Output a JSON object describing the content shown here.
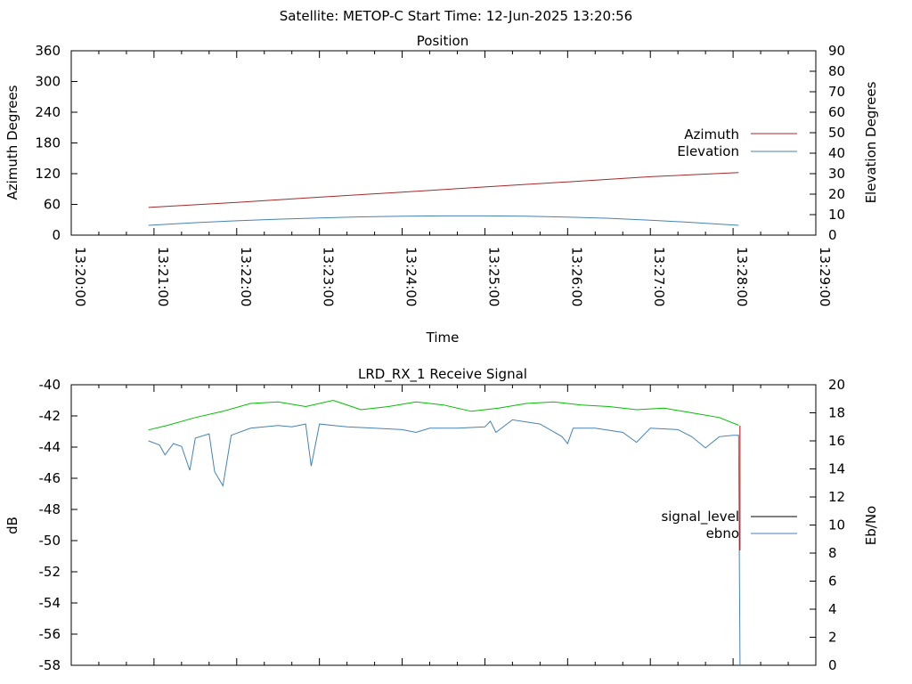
{
  "header": {
    "title": "Satellite: METOP-C    Start Time: 12-Jun-2025 13:20:56"
  },
  "chart_data": [
    {
      "type": "line",
      "title": "Position",
      "xlabel": "Time",
      "ylabel": "Azimuth Degrees",
      "y2label": "Elevation Degrees",
      "x_ticks": [
        "13:20:00",
        "13:21:00",
        "13:22:00",
        "13:23:00",
        "13:24:00",
        "13:25:00",
        "13:26:00",
        "13:27:00",
        "13:28:00",
        "13:29:00"
      ],
      "ylim": [
        0,
        360
      ],
      "y_ticks": [
        "0",
        "60",
        "120",
        "180",
        "240",
        "300",
        "360"
      ],
      "y2lim": [
        0,
        90
      ],
      "y2_ticks": [
        "0",
        "10",
        "20",
        "30",
        "40",
        "50",
        "60",
        "70",
        "80",
        "90"
      ],
      "legend_position": "right",
      "series": [
        {
          "name": "Azimuth",
          "axis": "left",
          "color": "#a52a2a",
          "x": [
            "13:20:56",
            "13:22:00",
            "13:23:00",
            "13:24:00",
            "13:25:00",
            "13:26:00",
            "13:27:00",
            "13:28:04"
          ],
          "values": [
            54,
            64,
            74,
            84,
            94,
            104,
            114,
            122
          ]
        },
        {
          "name": "Elevation",
          "axis": "right",
          "color": "#4682b4",
          "x": [
            "13:20:56",
            "13:21:30",
            "13:22:00",
            "13:22:30",
            "13:23:00",
            "13:23:30",
            "13:24:00",
            "13:24:30",
            "13:25:00",
            "13:25:30",
            "13:26:00",
            "13:26:30",
            "13:27:00",
            "13:27:30",
            "13:28:04"
          ],
          "values": [
            4.8,
            6.1,
            7.0,
            7.8,
            8.4,
            8.9,
            9.2,
            9.4,
            9.4,
            9.2,
            8.8,
            8.2,
            7.3,
            6.2,
            4.8
          ]
        }
      ]
    },
    {
      "type": "line",
      "title": "LRD_RX_1 Receive Signal",
      "ylabel": "dB",
      "y2label": "Eb/No",
      "ylim": [
        -58,
        -40
      ],
      "y_ticks": [
        "-40",
        "-42",
        "-44",
        "-46",
        "-48",
        "-50",
        "-52",
        "-54",
        "-56",
        "-58"
      ],
      "y2lim": [
        0,
        20
      ],
      "y2_ticks": [
        "0",
        "2",
        "4",
        "6",
        "8",
        "10",
        "12",
        "14",
        "16",
        "18",
        "20"
      ],
      "legend_position": "right",
      "series": [
        {
          "name": "signal_level",
          "axis": "left",
          "color": "#000000",
          "x": [],
          "values": []
        },
        {
          "name": "ebno",
          "axis": "right",
          "color": "#4682b4",
          "x": [
            "13:20:56",
            "13:21:04",
            "13:21:08",
            "13:21:14",
            "13:21:20",
            "13:21:26",
            "13:21:30",
            "13:21:40",
            "13:21:44",
            "13:21:50",
            "13:21:56",
            "13:22:10",
            "13:22:30",
            "13:22:40",
            "13:22:50",
            "13:22:54",
            "13:23:00",
            "13:23:20",
            "13:23:40",
            "13:24:00",
            "13:24:10",
            "13:24:20",
            "13:24:40",
            "13:25:00",
            "13:25:04",
            "13:25:08",
            "13:25:20",
            "13:25:40",
            "13:25:56",
            "13:26:00",
            "13:26:04",
            "13:26:20",
            "13:26:40",
            "13:26:50",
            "13:27:00",
            "13:27:20",
            "13:27:30",
            "13:27:40",
            "13:27:50",
            "13:28:00",
            "13:28:04",
            "13:28:05"
          ],
          "values": [
            16.0,
            15.7,
            15.0,
            15.8,
            15.6,
            13.9,
            16.2,
            16.5,
            13.8,
            12.8,
            16.4,
            16.9,
            17.1,
            17.0,
            17.2,
            14.2,
            17.2,
            17.0,
            16.9,
            16.8,
            16.6,
            16.9,
            16.9,
            17.0,
            17.4,
            16.6,
            17.5,
            17.2,
            16.3,
            15.8,
            16.9,
            16.9,
            16.6,
            15.9,
            16.9,
            16.8,
            16.3,
            15.5,
            16.3,
            16.4,
            16.4,
            0
          ]
        },
        {
          "name": "",
          "axis": "left",
          "color": "#00c000",
          "x": [
            "13:20:56",
            "13:21:10",
            "13:21:30",
            "13:21:50",
            "13:22:10",
            "13:22:30",
            "13:22:50",
            "13:23:10",
            "13:23:30",
            "13:23:50",
            "13:24:10",
            "13:24:30",
            "13:24:50",
            "13:25:10",
            "13:25:30",
            "13:25:50",
            "13:26:10",
            "13:26:30",
            "13:26:50",
            "13:27:10",
            "13:27:30",
            "13:27:50",
            "13:28:04"
          ],
          "values": [
            -42.9,
            -42.6,
            -42.1,
            -41.7,
            -41.2,
            -41.1,
            -41.4,
            -41.0,
            -41.6,
            -41.4,
            -41.1,
            -41.3,
            -41.7,
            -41.5,
            -41.2,
            -41.1,
            -41.3,
            -41.4,
            -41.6,
            -41.5,
            -41.8,
            -42.1,
            -42.6
          ]
        }
      ]
    }
  ]
}
